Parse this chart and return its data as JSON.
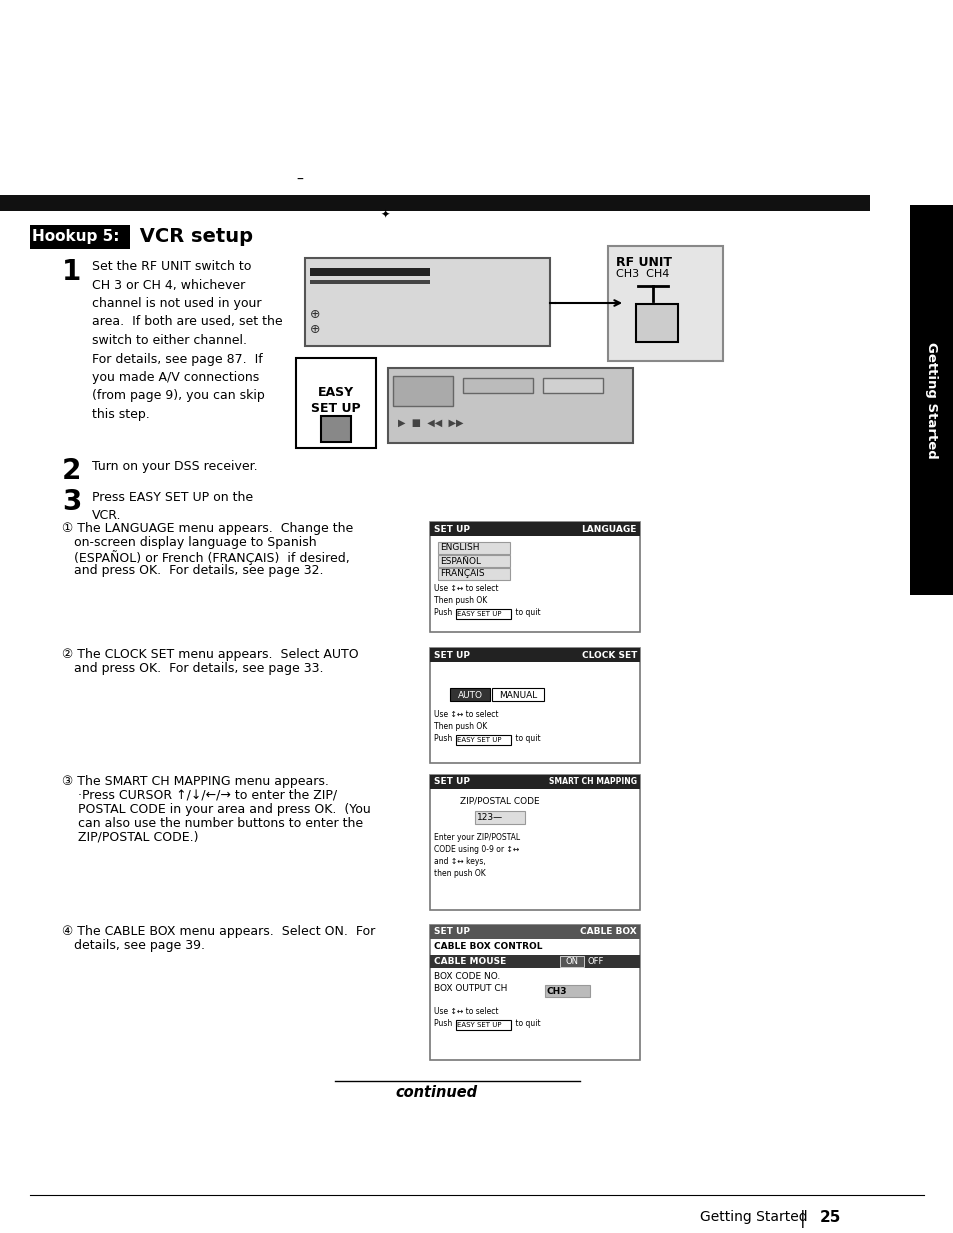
{
  "page_bg": "#ffffff",
  "title_box_color": "#000000",
  "title_box_text": "Hookup 5:",
  "title_text": " VCR setup",
  "sidebar_text": "Getting Started",
  "sidebar_bg": "#000000",
  "top_bar_color": "#000000",
  "step1_text": "Set the RF UNIT switch to\nCH 3 or CH 4, whichever\nchannel is not used in your\narea.  If both are used, set the\nswitch to either channel.\nFor details, see page 87.  If\nyou made A/V connections\n(from page 9), you can skip\nthis step.",
  "step2_text": "Turn on your DSS receiver.",
  "step3_text": "Press EASY SET UP on the\nVCR.",
  "bullet1_intro": "① The LANGUAGE menu appears.  Change the",
  "bullet1_line2": "   on-screen display language to Spanish",
  "bullet1_line3": "   (ESPAÑOL) or French (FRANÇAIS)  if desired,",
  "bullet1_line4": "   and press OK.  For details, see page 32.",
  "bullet2_intro": "② The CLOCK SET menu appears.  Select AUTO",
  "bullet2_line2": "   and press OK.  For details, see page 33.",
  "bullet3_intro": "③ The SMART CH MAPPING menu appears.",
  "bullet3_line2": "    ·Press CURSOR ↑/↓/←/→ to enter the ZIP/",
  "bullet3_line3": "    POSTAL CODE in your area and press OK.  (You",
  "bullet3_line4": "    can also use the number buttons to enter the",
  "bullet3_line5": "    ZIP/POSTAL CODE.)",
  "bullet4_intro": "④ The CABLE BOX menu appears.  Select ON.  For",
  "bullet4_line2": "   details, see page 39.",
  "continued_text": "continued",
  "page_footer": "Getting Started",
  "page_num": "25"
}
